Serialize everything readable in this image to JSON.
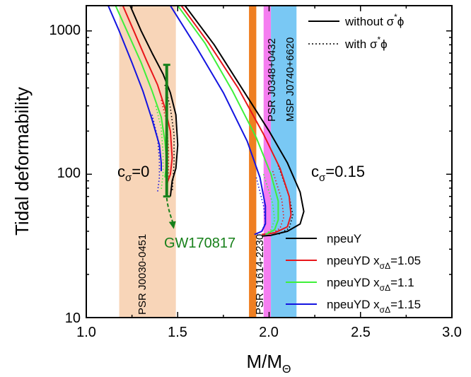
{
  "chart_data": {
    "type": "line",
    "xlabel": "M/M",
    "xlabel_sub": "Θ",
    "ylabel": "Tidal deformability",
    "xlim": [
      1.0,
      3.0
    ],
    "ylim": [
      10,
      1500
    ],
    "yscale": "log",
    "x_ticks": [
      "1.0",
      "1.5",
      "2.0",
      "2.5",
      "3.0"
    ],
    "y_ticks": [
      {
        "value": 10,
        "label": "10"
      },
      {
        "value": 100,
        "label": "100"
      },
      {
        "value": 1000,
        "label": "1000"
      }
    ],
    "bands": [
      {
        "label": "PSR J0030-0451",
        "x": [
          1.18,
          1.49
        ],
        "color": "#f8d5b8"
      },
      {
        "label": "PSR J1614-2230",
        "x": [
          1.89,
          1.93
        ],
        "color": "#ef7f22"
      },
      {
        "label": "PSR J0348+0432",
        "x": [
          1.97,
          2.01
        ],
        "color": "#f57ef0"
      },
      {
        "label": "MSP J0740+6620",
        "x": [
          2.01,
          2.15
        ],
        "color": "#79c8f4"
      }
    ],
    "gw_event": {
      "label": "GW170817",
      "x": 1.44,
      "lambda_range": [
        70,
        580
      ],
      "color": "#17801a"
    },
    "annotations": [
      {
        "text": "c",
        "sub": "σ",
        "rest": "=0",
        "x": 1.1,
        "y": 105
      },
      {
        "text": "c",
        "sub": "σ",
        "rest": "=0.15",
        "x": 2.27,
        "y": 100
      }
    ],
    "series": [
      {
        "name": "npeuY",
        "color": "#000000",
        "c0_solid": {
          "x": [
            1.24,
            1.3,
            1.36,
            1.42,
            1.46,
            1.49,
            1.5,
            1.49,
            1.47,
            1.46
          ],
          "y": [
            1500,
            1000,
            700,
            500,
            370,
            260,
            160,
            110,
            90,
            70
          ]
        },
        "c0_dotted": {
          "x": [
            1.43,
            1.46,
            1.48,
            1.48,
            1.47
          ],
          "y": [
            420,
            290,
            190,
            120,
            75
          ]
        },
        "c15_solid": {
          "x": [
            1.54,
            1.7,
            1.85,
            2.0,
            2.1,
            2.17,
            2.19,
            2.17,
            2.1,
            2.01,
            1.96
          ],
          "y": [
            1500,
            800,
            400,
            200,
            120,
            75,
            55,
            45,
            40,
            37.5,
            37
          ]
        },
        "c15_dotted": {
          "x": [
            2.05,
            2.11,
            2.13,
            2.11,
            2.05
          ],
          "y": [
            115,
            70,
            52,
            42,
            38
          ]
        }
      },
      {
        "name": "npeuYD x",
        "sub": "σΔ",
        "suffix": "=1.05",
        "color": "#e8161b",
        "c0_solid": {
          "x": [
            1.2,
            1.26,
            1.33,
            1.39,
            1.43,
            1.46,
            1.47,
            1.46,
            1.44
          ],
          "y": [
            1500,
            1000,
            620,
            420,
            290,
            200,
            130,
            100,
            85
          ]
        },
        "c0_dotted": {
          "x": [
            1.41,
            1.44,
            1.45,
            1.45,
            1.44
          ],
          "y": [
            330,
            230,
            150,
            100,
            75
          ]
        },
        "c15_solid": {
          "x": [
            1.52,
            1.67,
            1.83,
            1.97,
            2.06,
            2.11,
            2.12,
            2.1,
            2.03,
            1.96
          ],
          "y": [
            1500,
            820,
            400,
            190,
            110,
            70,
            52,
            43,
            39,
            38
          ]
        },
        "c15_dotted": {
          "x": [
            2.02,
            2.07,
            2.08,
            2.06,
            2.02
          ],
          "y": [
            105,
            66,
            50,
            42,
            39
          ]
        }
      },
      {
        "name": "npeuYD x",
        "sub": "σΔ",
        "suffix": "=1.1",
        "color": "#3ef03a",
        "c0_solid": {
          "x": [
            1.16,
            1.23,
            1.3,
            1.36,
            1.41,
            1.43,
            1.44,
            1.43
          ],
          "y": [
            1500,
            950,
            600,
            380,
            250,
            170,
            120,
            95
          ]
        },
        "c0_dotted": {
          "x": [
            1.38,
            1.41,
            1.42,
            1.42,
            1.41
          ],
          "y": [
            300,
            210,
            140,
            100,
            78
          ]
        },
        "c15_solid": {
          "x": [
            1.5,
            1.65,
            1.8,
            1.93,
            2.01,
            2.05,
            2.05,
            2.03,
            1.98
          ],
          "y": [
            1500,
            820,
            380,
            180,
            100,
            65,
            48,
            41,
            38
          ]
        },
        "c15_dotted": {
          "x": [
            1.97,
            2.02,
            2.03,
            2.01,
            1.98
          ],
          "y": [
            100,
            62,
            48,
            41,
            38
          ]
        }
      },
      {
        "name": "npeuYD x",
        "sub": "σΔ",
        "suffix": "=1.15",
        "color": "#1414e0",
        "c0_solid": {
          "x": [
            1.12,
            1.18,
            1.25,
            1.31,
            1.36,
            1.4,
            1.41,
            1.41
          ],
          "y": [
            1500,
            1000,
            600,
            380,
            240,
            160,
            120,
            105
          ]
        },
        "c0_dotted": {
          "x": [
            1.36,
            1.39,
            1.4,
            1.4,
            1.39
          ],
          "y": [
            260,
            180,
            125,
            95,
            75
          ]
        },
        "c15_solid": {
          "x": [
            1.46,
            1.6,
            1.75,
            1.88,
            1.95,
            1.98,
            1.98,
            1.96,
            1.92
          ],
          "y": [
            1500,
            780,
            370,
            170,
            95,
            60,
            45,
            40,
            38
          ]
        },
        "c15_dotted": {
          "x": [
            1.93,
            1.97,
            1.98,
            1.96,
            1.93
          ],
          "y": [
            95,
            60,
            46,
            40,
            38
          ]
        }
      }
    ],
    "style_legend": [
      {
        "style": "solid",
        "label": "without σ",
        "sup": "*",
        "tail": "ϕ"
      },
      {
        "style": "dotted",
        "label": "with σ",
        "sup": "*",
        "tail": "ϕ"
      }
    ],
    "grid": false,
    "legend_position": "right"
  }
}
